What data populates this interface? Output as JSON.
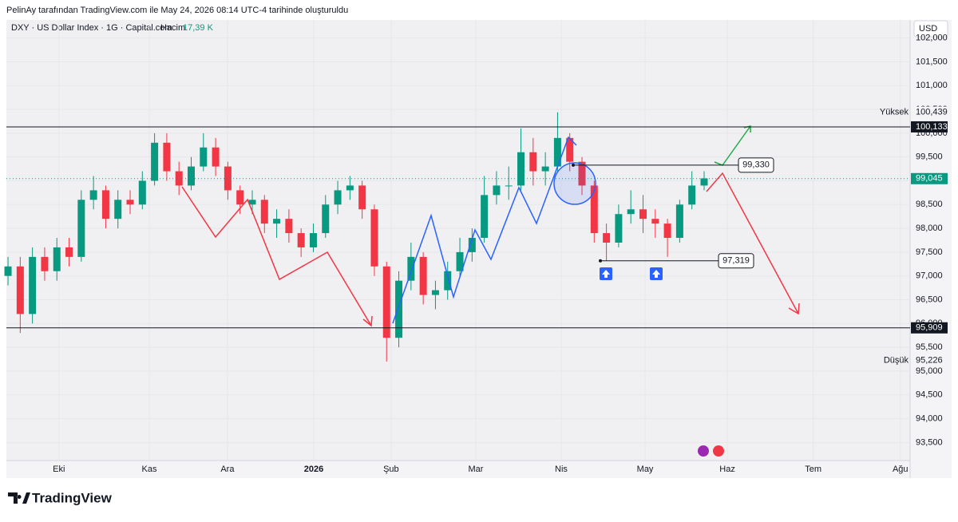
{
  "header": {
    "text": "PelinAy tarafından TradingView.com ile May 24, 2026 08:14 UTC-4 tarihinde oluşturuldu"
  },
  "footer": {
    "logo": "TradingView"
  },
  "chart_data": {
    "type": "candlestick",
    "symbol": "DXY · US Dollar Index · 1G · Capital.com",
    "volume_label": "Hacim",
    "volume_value": "17,39 K",
    "currency": "USD",
    "up_color": "#089981",
    "down_color": "#f23645",
    "x": [
      0,
      3,
      6,
      9,
      12,
      15,
      18,
      21,
      24,
      27,
      30,
      33,
      36,
      39,
      42,
      45,
      48,
      51,
      54,
      57,
      60,
      63,
      66,
      69,
      72,
      75,
      78,
      81,
      84,
      87,
      90,
      93,
      96,
      99,
      102,
      105,
      108,
      111,
      114,
      117,
      120,
      123,
      126,
      129,
      132,
      135,
      138,
      141,
      144,
      147,
      150,
      153,
      156,
      159,
      162,
      165,
      168,
      171
    ],
    "open": [
      97.0,
      97.2,
      96.2,
      97.4,
      97.1,
      97.6,
      97.4,
      98.6,
      98.8,
      98.2,
      98.6,
      98.5,
      99.0,
      99.8,
      99.2,
      98.9,
      99.3,
      99.7,
      99.3,
      98.8,
      98.5,
      98.6,
      98.1,
      98.2,
      97.9,
      97.6,
      97.9,
      98.5,
      98.8,
      98.9,
      98.4,
      97.2,
      95.7,
      96.9,
      97.4,
      96.6,
      96.7,
      97.1,
      97.5,
      97.8,
      98.7,
      98.9,
      98.9,
      99.6,
      99.2,
      99.3,
      99.9,
      99.4,
      98.9,
      97.9,
      97.7,
      98.3,
      98.4,
      98.2,
      98.1,
      97.8,
      98.5,
      98.9
    ],
    "high": [
      97.4,
      97.4,
      97.6,
      97.6,
      97.8,
      97.8,
      98.8,
      99.1,
      98.9,
      98.8,
      98.8,
      99.2,
      100.0,
      100.0,
      99.4,
      99.5,
      100.0,
      99.9,
      99.4,
      98.9,
      98.8,
      98.7,
      98.4,
      98.4,
      98.0,
      98.1,
      98.7,
      99.0,
      99.1,
      99.0,
      98.5,
      97.3,
      97.1,
      97.7,
      97.5,
      96.9,
      97.3,
      97.8,
      98.0,
      99.1,
      99.2,
      99.3,
      100.1,
      99.9,
      99.6,
      100.44,
      100.0,
      99.5,
      99.0,
      98.1,
      98.5,
      98.8,
      98.7,
      98.4,
      98.2,
      98.6,
      99.2,
      99.2
    ],
    "low": [
      96.8,
      95.8,
      96.0,
      96.9,
      96.9,
      97.2,
      97.3,
      98.4,
      98.0,
      98.0,
      98.3,
      98.4,
      98.9,
      99.0,
      98.7,
      98.8,
      99.2,
      99.1,
      98.6,
      98.3,
      98.3,
      97.9,
      97.8,
      97.7,
      97.4,
      97.5,
      97.8,
      98.3,
      98.6,
      98.2,
      97.0,
      95.2,
      95.5,
      96.7,
      96.4,
      96.3,
      96.5,
      97.0,
      97.3,
      97.7,
      98.5,
      98.6,
      98.8,
      98.9,
      98.9,
      99.2,
      99.2,
      98.7,
      97.7,
      97.32,
      97.6,
      98.1,
      97.9,
      97.8,
      97.4,
      97.7,
      98.4,
      98.8
    ],
    "close": [
      97.2,
      96.2,
      97.4,
      97.1,
      97.6,
      97.4,
      98.6,
      98.8,
      98.2,
      98.6,
      98.5,
      99.0,
      99.8,
      99.2,
      98.9,
      99.3,
      99.7,
      99.3,
      98.8,
      98.5,
      98.6,
      98.1,
      98.2,
      97.9,
      97.6,
      97.9,
      98.5,
      98.8,
      98.9,
      98.4,
      97.2,
      95.7,
      96.9,
      97.4,
      96.6,
      96.7,
      97.1,
      97.5,
      97.8,
      98.7,
      98.9,
      98.9,
      99.6,
      99.2,
      99.3,
      99.9,
      99.4,
      98.9,
      97.9,
      97.7,
      98.3,
      98.4,
      98.2,
      98.1,
      97.8,
      98.5,
      98.9,
      99.05
    ],
    "xlim": [
      -0.4,
      221.6
    ],
    "xticks": [
      {
        "value": 12.5,
        "label": "Eki"
      },
      {
        "value": 34.7,
        "label": "Kas"
      },
      {
        "value": 53.9,
        "label": "Ara"
      },
      {
        "value": 75.1,
        "label": "2026"
      },
      {
        "value": 94.1,
        "label": "Şub"
      },
      {
        "value": 114.9,
        "label": "Mar"
      },
      {
        "value": 135.9,
        "label": "Nis"
      },
      {
        "value": 156.5,
        "label": "May"
      },
      {
        "value": 176.7,
        "label": "Haz"
      },
      {
        "value": 197.8,
        "label": "Tem"
      },
      {
        "value": 219.2,
        "label": "Ağu"
      }
    ],
    "ylim": [
      93.12,
      102.38
    ],
    "yticks": [
      {
        "value": 93.5,
        "label": "93,500"
      },
      {
        "value": 94.0,
        "label": "94,000"
      },
      {
        "value": 94.5,
        "label": "94,500"
      },
      {
        "value": 95.0,
        "label": "95,000"
      },
      {
        "value": 95.5,
        "label": "95,500"
      },
      {
        "value": 96.0,
        "label": "96,000"
      },
      {
        "value": 96.5,
        "label": "96,500"
      },
      {
        "value": 97.0,
        "label": "97,000"
      },
      {
        "value": 97.5,
        "label": "97,500"
      },
      {
        "value": 98.0,
        "label": "98,000"
      },
      {
        "value": 98.5,
        "label": "98,500"
      },
      {
        "value": 99.0,
        "label": "99,000"
      },
      {
        "value": 99.5,
        "label": "99,500"
      },
      {
        "value": 100.0,
        "label": "100,000"
      },
      {
        "value": 100.5,
        "label": "100,500"
      },
      {
        "value": 101.0,
        "label": "101,000"
      },
      {
        "value": 101.5,
        "label": "101,500"
      },
      {
        "value": 102.0,
        "label": "102,000"
      }
    ],
    "levels": [
      {
        "value": 100.133,
        "label": "100,133"
      },
      {
        "value": 95.909,
        "label": "95,909"
      }
    ],
    "last_price": {
      "value": 99.045,
      "label": "99,045"
    },
    "high_marker": {
      "name": "Yüksek",
      "value": 100.439,
      "label": "100,439"
    },
    "low_marker": {
      "name": "Düşük",
      "value": 95.226,
      "label": "95,226"
    },
    "annotations": [
      {
        "value": 99.33,
        "label": "99,330"
      },
      {
        "value": 97.319,
        "label": "97,319"
      }
    ]
  }
}
